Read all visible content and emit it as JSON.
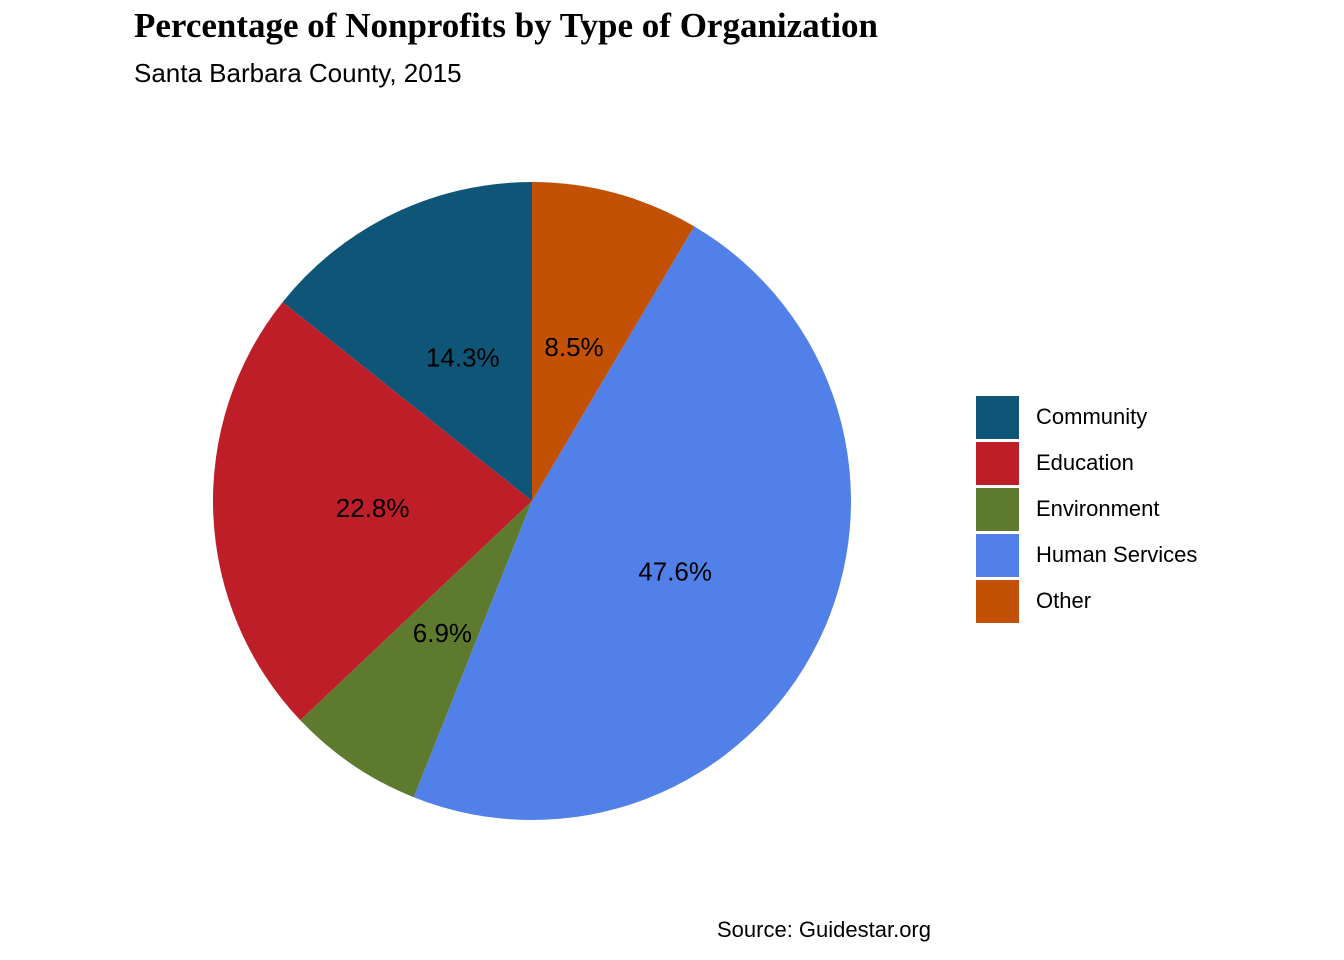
{
  "chart_data": {
    "type": "pie",
    "title": "Percentage of Nonprofits by Type of Organization",
    "subtitle": "Santa Barbara County, 2015",
    "caption": "Source: Guidestar.org",
    "categories": [
      "Community",
      "Education",
      "Environment",
      "Human Services",
      "Other"
    ],
    "values": [
      14.3,
      22.8,
      6.9,
      47.6,
      8.5
    ],
    "labels": [
      "14.3%",
      "22.8%",
      "6.9%",
      "47.6%",
      "8.5%"
    ],
    "colors": [
      "#0e5577",
      "#be1e28",
      "#5d7a2e",
      "#5180e9",
      "#c25106"
    ],
    "start": "top",
    "direction": "counterclockwise",
    "legend": {
      "position": "right",
      "title": ""
    }
  }
}
